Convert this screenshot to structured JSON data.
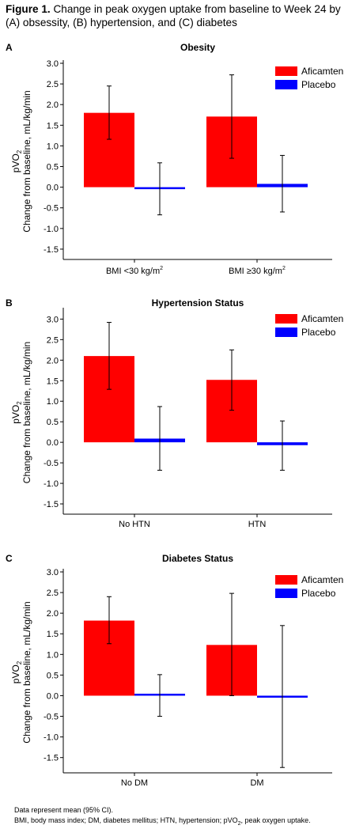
{
  "figure": {
    "label": "Figure 1.",
    "title": "Change in peak oxygen uptake from baseline to Week 24 by (A) obsessity, (B) hypertension, and (C) diabetes"
  },
  "colors": {
    "aficamten": "#ff0000",
    "placebo": "#0000ff"
  },
  "chart_data": [
    {
      "type": "bar",
      "panel_letter": "A",
      "title": "Obesity",
      "ylabel_line1": "pVO",
      "ylabel_sub": "2",
      "ylabel_line2": "Change from baseline, mL/kg/min",
      "ylim": [
        -1.75,
        3.0
      ],
      "yticks": [
        "3.0",
        "2.5",
        "2.0",
        "1.5",
        "1.0",
        "0.5",
        "0.0",
        "-0.5",
        "-1.0",
        "-1.5"
      ],
      "ytick_values": [
        3.0,
        2.5,
        2.0,
        1.5,
        1.0,
        0.5,
        0.0,
        -0.5,
        -1.0,
        -1.5
      ],
      "categories": [
        {
          "main": "BMI <30 kg/m",
          "sup": "2"
        },
        {
          "main": "BMI ≥30 kg/m",
          "sup": "2"
        }
      ],
      "legend": [
        "Aficamten",
        "Placebo"
      ],
      "series": [
        {
          "name": "Aficamten",
          "values": [
            1.8,
            1.71
          ],
          "ci_low": [
            1.16,
            0.7
          ],
          "ci_high": [
            2.45,
            2.72
          ]
        },
        {
          "name": "Placebo",
          "values": [
            -0.03,
            0.08
          ],
          "ci_low": [
            -0.67,
            -0.6
          ],
          "ci_high": [
            0.59,
            0.77
          ]
        }
      ]
    },
    {
      "type": "bar",
      "panel_letter": "B",
      "title": "Hypertension Status",
      "ylabel_line1": "pVO",
      "ylabel_sub": "2",
      "ylabel_line2": "Change from baseline, mL/kg/min",
      "ylim": [
        -1.75,
        3.2
      ],
      "yticks": [
        "3.0",
        "2.5",
        "2.0",
        "1.5",
        "1.0",
        "0.5",
        "0.0",
        "-0.5",
        "-1.0",
        "-1.5"
      ],
      "ytick_values": [
        3.0,
        2.5,
        2.0,
        1.5,
        1.0,
        0.5,
        0.0,
        -0.5,
        -1.0,
        -1.5
      ],
      "categories": [
        {
          "main": "No HTN",
          "sup": ""
        },
        {
          "main": "HTN",
          "sup": ""
        }
      ],
      "legend": [
        "Aficamten",
        "Placebo"
      ],
      "series": [
        {
          "name": "Aficamten",
          "values": [
            2.1,
            1.52
          ],
          "ci_low": [
            1.29,
            0.78
          ],
          "ci_high": [
            2.92,
            2.25
          ]
        },
        {
          "name": "Placebo",
          "values": [
            0.09,
            -0.07
          ],
          "ci_low": [
            -0.68,
            -0.68
          ],
          "ci_high": [
            0.87,
            0.52
          ]
        }
      ]
    },
    {
      "type": "bar",
      "panel_letter": "C",
      "title": "Diabetes Status",
      "ylabel_line1": "pVO",
      "ylabel_sub": "2",
      "ylabel_line2": "Change from baseline, mL/kg/min",
      "ylim": [
        -1.87,
        3.0
      ],
      "yticks": [
        "3.0",
        "2.5",
        "2.0",
        "1.5",
        "1.0",
        "0.5",
        "0.0",
        "-0.5",
        "-1.0",
        "-1.5"
      ],
      "ytick_values": [
        3.0,
        2.5,
        2.0,
        1.5,
        1.0,
        0.5,
        0.0,
        -0.5,
        -1.0,
        -1.5
      ],
      "categories": [
        {
          "main": "No DM",
          "sup": ""
        },
        {
          "main": "DM",
          "sup": ""
        }
      ],
      "legend": [
        "Aficamten",
        "Placebo"
      ],
      "series": [
        {
          "name": "Aficamten",
          "values": [
            1.82,
            1.23
          ],
          "ci_low": [
            1.26,
            0.0
          ],
          "ci_high": [
            2.4,
            2.48
          ]
        },
        {
          "name": "Placebo",
          "values": [
            0.01,
            -0.01
          ],
          "ci_low": [
            -0.5,
            -1.74
          ],
          "ci_high": [
            0.51,
            1.7
          ]
        }
      ]
    }
  ],
  "footnotes": {
    "line1": "Data represent mean (95% CI).",
    "line2_a": "BMI, body mass index; DM, diabetes mellitus; HTN, hypertension; pVO",
    "line2_sub": "2",
    "line2_b": ", peak oxygen uptake."
  }
}
